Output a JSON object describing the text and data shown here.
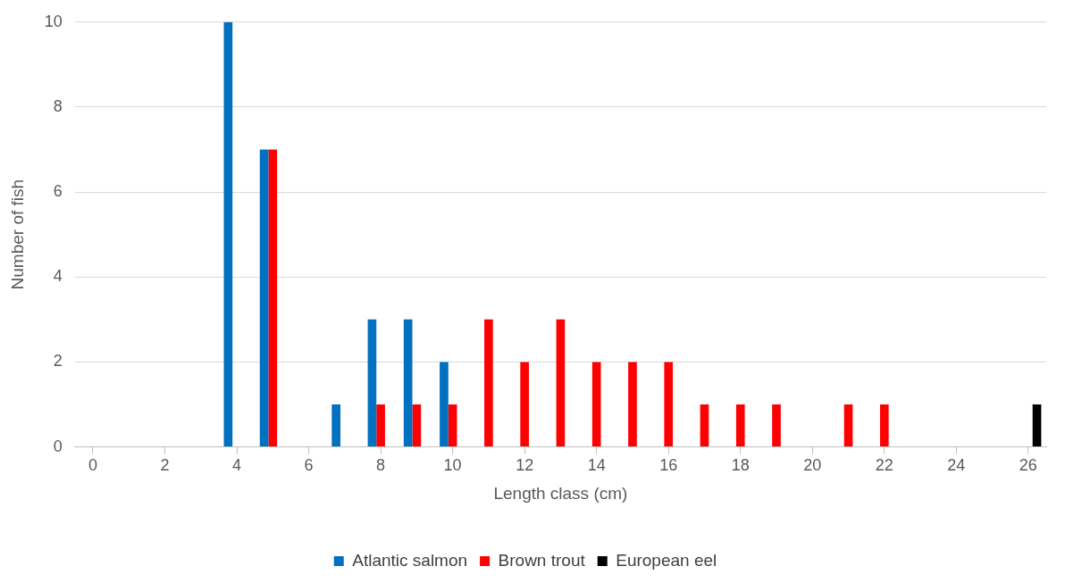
{
  "chart_data": {
    "type": "bar",
    "xlabel": "Length class (cm)",
    "ylabel": "Number of fish",
    "x": [
      0,
      1,
      2,
      3,
      4,
      5,
      6,
      7,
      8,
      9,
      10,
      11,
      12,
      13,
      14,
      15,
      16,
      17,
      18,
      19,
      20,
      21,
      22,
      23,
      24,
      25,
      26
    ],
    "series": [
      {
        "name": "Atlantic salmon",
        "color": "#0070c0",
        "values": [
          0,
          0,
          0,
          0,
          10,
          7,
          0,
          1,
          3,
          3,
          2,
          0,
          0,
          0,
          0,
          0,
          0,
          0,
          0,
          0,
          0,
          0,
          0,
          0,
          0,
          0,
          0
        ]
      },
      {
        "name": "Brown trout",
        "color": "#ff0000",
        "values": [
          0,
          0,
          0,
          0,
          0,
          7,
          0,
          0,
          1,
          1,
          1,
          3,
          2,
          3,
          2,
          2,
          2,
          1,
          1,
          1,
          0,
          1,
          1,
          0,
          0,
          0,
          0
        ]
      },
      {
        "name": "European eel",
        "color": "#000000",
        "values": [
          0,
          0,
          0,
          0,
          0,
          0,
          0,
          0,
          0,
          0,
          0,
          0,
          0,
          0,
          0,
          0,
          0,
          0,
          0,
          0,
          0,
          0,
          0,
          0,
          0,
          0,
          1
        ]
      }
    ],
    "xlim": [
      -0.5,
      26.5
    ],
    "xticks": [
      0,
      2,
      4,
      6,
      8,
      10,
      12,
      14,
      16,
      18,
      20,
      22,
      24,
      26
    ],
    "ylim": [
      0,
      10
    ],
    "yticks": [
      0,
      2,
      4,
      6,
      8,
      10
    ],
    "grid": "y",
    "legend": "bottom"
  }
}
